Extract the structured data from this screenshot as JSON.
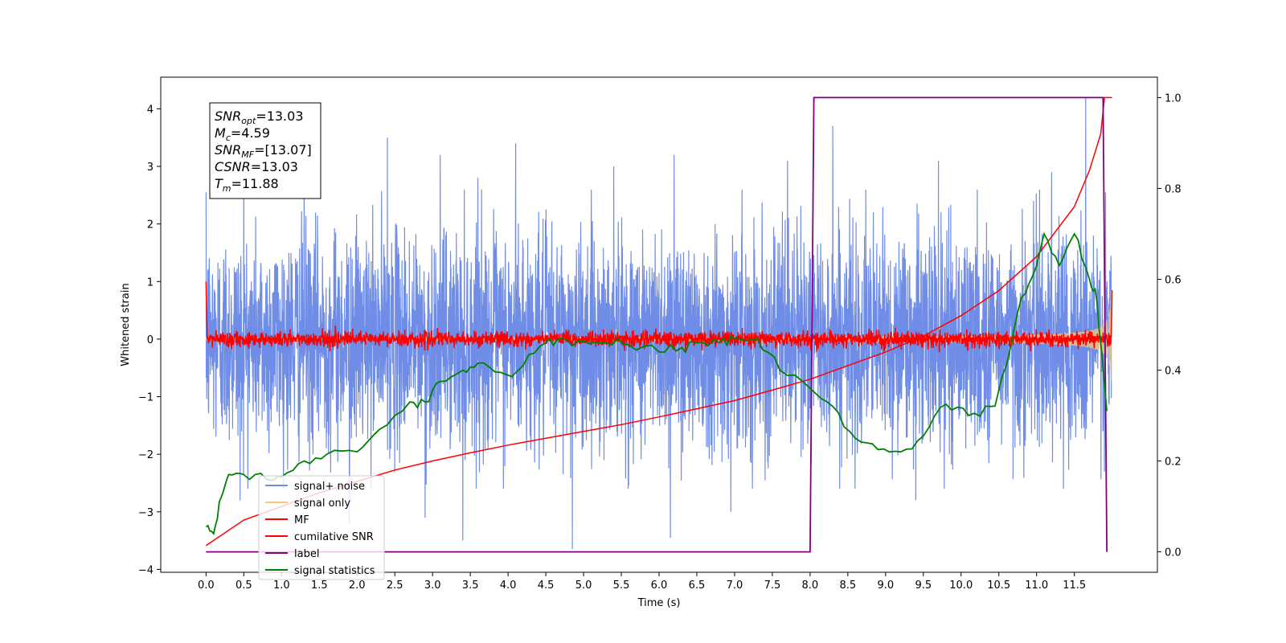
{
  "chart_data": {
    "type": "line",
    "xlabel": "Time (s)",
    "ylabel": "Whitened strain",
    "xlim": [
      -0.6,
      12.6
    ],
    "ylim": [
      -4.05,
      4.55
    ],
    "ylim_right": [
      -0.045,
      1.045
    ],
    "xticks": [
      "0.0",
      "0.5",
      "1.0",
      "1.5",
      "2.0",
      "2.5",
      "3.0",
      "3.5",
      "4.0",
      "4.5",
      "5.0",
      "5.5",
      "6.0",
      "6.5",
      "7.0",
      "7.5",
      "8.0",
      "8.5",
      "9.0",
      "9.5",
      "10.0",
      "10.5",
      "11.0",
      "11.5"
    ],
    "yticks": [
      "4",
      "3",
      "2",
      "1",
      "0",
      "−1",
      "−2",
      "−3",
      "−4"
    ],
    "yticks_right": [
      "1.0",
      "0.8",
      "0.6",
      "0.4",
      "0.2",
      "0.0"
    ],
    "legend": {
      "placement": "lower-left",
      "entries": [
        {
          "label": "signal+ noise",
          "color": "#6f8de6"
        },
        {
          "label": "signal only",
          "color": "#f5c97a"
        },
        {
          "label": "MF",
          "color": "#ff0000"
        },
        {
          "label": "cumilative SNR",
          "color": "#ff0000"
        },
        {
          "label": "label",
          "color": "#800080"
        },
        {
          "label": "signal statistics",
          "color": "#008000"
        }
      ]
    },
    "annotation": {
      "lines": [
        {
          "base": "SNR",
          "sub": "opt",
          "value": "=13.03"
        },
        {
          "base": "M",
          "sub": "c",
          "value": "=4.59"
        },
        {
          "base": "SNR",
          "sub": "MF",
          "value": "=[13.07]"
        },
        {
          "base": "CSNR",
          "sub": "",
          "value": "=13.03"
        },
        {
          "base": "T",
          "sub": "m",
          "value": "=11.88"
        }
      ]
    },
    "series": [
      {
        "name": "signal+ noise",
        "axis": "left",
        "color": "#6f8de6",
        "t_start": 0.0,
        "t_end": 11.99,
        "sigma": 1.0,
        "upper_peaks": [
          [
            0.5,
            2.9
          ],
          [
            1.3,
            2.7
          ],
          [
            2.4,
            3.5
          ],
          [
            3.1,
            3.2
          ],
          [
            3.6,
            2.8
          ],
          [
            4.1,
            3.4
          ],
          [
            5.4,
            3.0
          ],
          [
            6.2,
            3.2
          ],
          [
            7.7,
            3.1
          ],
          [
            8.3,
            3.7
          ],
          [
            9.7,
            3.1
          ],
          [
            11.2,
            2.9
          ],
          [
            11.65,
            4.2
          ]
        ],
        "lower_peaks": [
          [
            0.45,
            -2.8
          ],
          [
            1.9,
            -3.2
          ],
          [
            2.9,
            -3.1
          ],
          [
            3.4,
            -3.5
          ],
          [
            4.85,
            -3.65
          ],
          [
            6.15,
            -3.45
          ],
          [
            6.95,
            -3.0
          ],
          [
            9.4,
            -2.8
          ],
          [
            11.9,
            -2.3
          ]
        ]
      },
      {
        "name": "signal only",
        "axis": "left",
        "color": "#f5c97a",
        "t_start": 0.0,
        "t_end": 11.99,
        "env_start": 0.02,
        "env_end": 1.15,
        "t_coalescence": 12.0
      },
      {
        "name": "MF",
        "axis": "left",
        "color": "#ff0000",
        "t_start": 0.0,
        "t_end": 12.0,
        "sigma": 0.065,
        "initial": 1.0,
        "final": 0.85
      },
      {
        "name": "cumilative SNR",
        "axis": "right",
        "color": "#ff0000",
        "x": [
          0.0,
          0.5,
          1.0,
          1.5,
          2.0,
          2.5,
          3.0,
          3.5,
          4.0,
          4.5,
          5.0,
          5.5,
          6.0,
          6.5,
          7.0,
          7.5,
          8.0,
          8.5,
          9.0,
          9.5,
          10.0,
          10.5,
          11.0,
          11.5,
          11.7,
          11.85,
          11.9,
          12.0
        ],
        "y": [
          0.014,
          0.07,
          0.1,
          0.13,
          0.155,
          0.18,
          0.2,
          0.218,
          0.235,
          0.25,
          0.265,
          0.28,
          0.297,
          0.315,
          0.333,
          0.356,
          0.38,
          0.41,
          0.44,
          0.475,
          0.52,
          0.575,
          0.65,
          0.76,
          0.84,
          0.92,
          1.0,
          1.0
        ]
      },
      {
        "name": "label",
        "axis": "right",
        "color": "#800080",
        "x": [
          0.0,
          8.0,
          8.05,
          11.88,
          11.93
        ],
        "y": [
          0.0,
          0.0,
          1.0,
          1.0,
          0.0
        ]
      },
      {
        "name": "signal statistics",
        "axis": "right",
        "color": "#008000",
        "x": [
          0.0,
          0.1,
          0.2,
          0.3,
          0.5,
          0.8,
          1.0,
          1.3,
          1.6,
          2.0,
          2.3,
          2.7,
          2.9,
          3.1,
          3.4,
          3.6,
          3.9,
          4.2,
          4.5,
          4.7,
          5.0,
          5.3,
          5.6,
          6.0,
          6.3,
          6.5,
          6.8,
          7.0,
          7.3,
          7.6,
          8.0,
          8.3,
          8.6,
          8.9,
          9.2,
          9.5,
          9.8,
          10.1,
          10.4,
          10.6,
          10.8,
          11.0,
          11.1,
          11.3,
          11.5,
          11.7,
          11.8,
          11.93
        ],
        "y": [
          0.055,
          0.04,
          0.12,
          0.17,
          0.17,
          0.16,
          0.165,
          0.2,
          0.215,
          0.22,
          0.27,
          0.33,
          0.33,
          0.375,
          0.4,
          0.415,
          0.395,
          0.41,
          0.46,
          0.47,
          0.465,
          0.46,
          0.455,
          0.44,
          0.45,
          0.46,
          0.46,
          0.47,
          0.47,
          0.4,
          0.36,
          0.32,
          0.25,
          0.225,
          0.22,
          0.255,
          0.325,
          0.3,
          0.32,
          0.41,
          0.56,
          0.63,
          0.7,
          0.63,
          0.7,
          0.6,
          0.55,
          0.31
        ]
      }
    ]
  }
}
